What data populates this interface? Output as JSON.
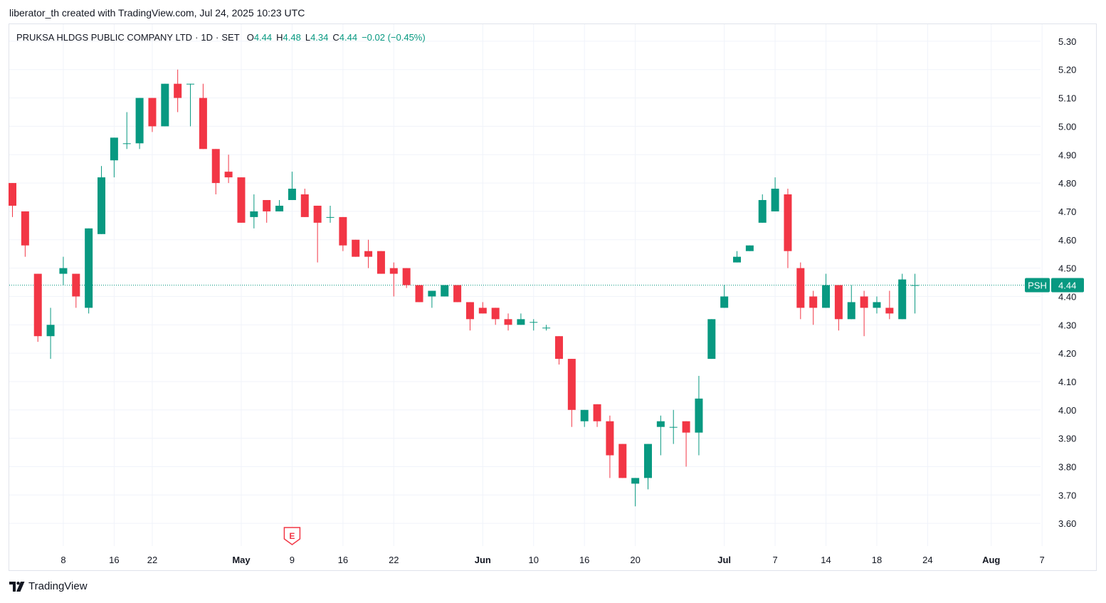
{
  "header": {
    "caption": "liberator_th created with TradingView.com, Jul 24, 2025 10:23 UTC"
  },
  "legend": {
    "symbol_name": "PRUKSA HLDGS PUBLIC COMPANY LTD",
    "interval": "1D",
    "exchange": "SET",
    "open_label": "O",
    "open": "4.44",
    "high_label": "H",
    "high": "4.48",
    "low_label": "L",
    "low": "4.34",
    "close_label": "C",
    "close": "4.44",
    "change": "−0.02 (−0.45%)"
  },
  "footer": {
    "brand": "TradingView"
  },
  "colors": {
    "up": "#089981",
    "down": "#f23645",
    "grid": "#f0f3fa",
    "text": "#131722"
  },
  "chart_data": {
    "type": "candlestick",
    "ylim": [
      3.52,
      5.36
    ],
    "y_ticks": [
      "5.30",
      "5.20",
      "5.10",
      "5.00",
      "4.90",
      "4.80",
      "4.70",
      "4.60",
      "4.50",
      "4.40",
      "4.30",
      "4.20",
      "4.10",
      "4.00",
      "3.90",
      "3.80",
      "3.70",
      "3.60"
    ],
    "x_ticks": [
      {
        "label": "8",
        "day": 8,
        "major": false
      },
      {
        "label": "16",
        "day": 16,
        "major": false
      },
      {
        "label": "22",
        "day": 22,
        "major": false
      },
      {
        "label": "May",
        "day": 36,
        "major": true
      },
      {
        "label": "9",
        "day": 44,
        "major": false
      },
      {
        "label": "16",
        "day": 52,
        "major": false
      },
      {
        "label": "22",
        "day": 60,
        "major": false
      },
      {
        "label": "Jun",
        "day": 74,
        "major": true
      },
      {
        "label": "10",
        "day": 82,
        "major": false
      },
      {
        "label": "16",
        "day": 90,
        "major": false
      },
      {
        "label": "20",
        "day": 98,
        "major": false
      },
      {
        "label": "Jul",
        "day": 112,
        "major": true
      },
      {
        "label": "7",
        "day": 120,
        "major": false
      },
      {
        "label": "14",
        "day": 128,
        "major": false
      },
      {
        "label": "18",
        "day": 136,
        "major": false
      },
      {
        "label": "24",
        "day": 144,
        "major": false
      },
      {
        "label": "Aug",
        "day": 154,
        "major": true
      },
      {
        "label": "7",
        "day": 162,
        "major": false
      }
    ],
    "last_price": {
      "symbol": "PSH",
      "value": "4.44",
      "price": 4.44
    },
    "earnings_marker": {
      "label": "E",
      "day": 44
    },
    "candles": [
      {
        "day": 0,
        "o": 4.8,
        "h": 4.8,
        "l": 4.68,
        "c": 4.72
      },
      {
        "day": 2,
        "o": 4.7,
        "h": 4.7,
        "l": 4.54,
        "c": 4.58
      },
      {
        "day": 4,
        "o": 4.48,
        "h": 4.48,
        "l": 4.24,
        "c": 4.26
      },
      {
        "day": 6,
        "o": 4.26,
        "h": 4.36,
        "l": 4.18,
        "c": 4.3
      },
      {
        "day": 8,
        "o": 4.48,
        "h": 4.54,
        "l": 4.44,
        "c": 4.5
      },
      {
        "day": 10,
        "o": 4.48,
        "h": 4.48,
        "l": 4.36,
        "c": 4.4
      },
      {
        "day": 12,
        "o": 4.36,
        "h": 4.64,
        "l": 4.34,
        "c": 4.64
      },
      {
        "day": 14,
        "o": 4.62,
        "h": 4.86,
        "l": 4.62,
        "c": 4.82
      },
      {
        "day": 16,
        "o": 4.88,
        "h": 4.96,
        "l": 4.82,
        "c": 4.96
      },
      {
        "day": 18,
        "o": 4.94,
        "h": 5.05,
        "l": 4.92,
        "c": 4.94
      },
      {
        "day": 20,
        "o": 4.94,
        "h": 5.1,
        "l": 4.92,
        "c": 5.1
      },
      {
        "day": 22,
        "o": 5.1,
        "h": 5.1,
        "l": 4.98,
        "c": 5.0
      },
      {
        "day": 24,
        "o": 5.0,
        "h": 5.15,
        "l": 5.0,
        "c": 5.15
      },
      {
        "day": 26,
        "o": 5.15,
        "h": 5.2,
        "l": 5.05,
        "c": 5.1
      },
      {
        "day": 28,
        "o": 5.15,
        "h": 5.15,
        "l": 5.0,
        "c": 5.15
      },
      {
        "day": 30,
        "o": 5.1,
        "h": 5.15,
        "l": 4.92,
        "c": 4.92
      },
      {
        "day": 32,
        "o": 4.92,
        "h": 4.92,
        "l": 4.76,
        "c": 4.8
      },
      {
        "day": 34,
        "o": 4.84,
        "h": 4.9,
        "l": 4.8,
        "c": 4.82
      },
      {
        "day": 36,
        "o": 4.82,
        "h": 4.82,
        "l": 4.66,
        "c": 4.66
      },
      {
        "day": 38,
        "o": 4.68,
        "h": 4.76,
        "l": 4.64,
        "c": 4.7
      },
      {
        "day": 40,
        "o": 4.74,
        "h": 4.74,
        "l": 4.66,
        "c": 4.7
      },
      {
        "day": 42,
        "o": 4.7,
        "h": 4.74,
        "l": 4.7,
        "c": 4.72
      },
      {
        "day": 44,
        "o": 4.74,
        "h": 4.84,
        "l": 4.74,
        "c": 4.78
      },
      {
        "day": 46,
        "o": 4.76,
        "h": 4.78,
        "l": 4.68,
        "c": 4.68
      },
      {
        "day": 48,
        "o": 4.72,
        "h": 4.72,
        "l": 4.52,
        "c": 4.66
      },
      {
        "day": 50,
        "o": 4.68,
        "h": 4.72,
        "l": 4.66,
        "c": 4.68
      },
      {
        "day": 52,
        "o": 4.68,
        "h": 4.68,
        "l": 4.56,
        "c": 4.58
      },
      {
        "day": 54,
        "o": 4.6,
        "h": 4.6,
        "l": 4.54,
        "c": 4.54
      },
      {
        "day": 56,
        "o": 4.56,
        "h": 4.6,
        "l": 4.5,
        "c": 4.54
      },
      {
        "day": 58,
        "o": 4.56,
        "h": 4.56,
        "l": 4.48,
        "c": 4.48
      },
      {
        "day": 60,
        "o": 4.5,
        "h": 4.52,
        "l": 4.4,
        "c": 4.48
      },
      {
        "day": 62,
        "o": 4.5,
        "h": 4.5,
        "l": 4.43,
        "c": 4.44
      },
      {
        "day": 64,
        "o": 4.44,
        "h": 4.44,
        "l": 4.38,
        "c": 4.38
      },
      {
        "day": 66,
        "o": 4.4,
        "h": 4.42,
        "l": 4.36,
        "c": 4.42
      },
      {
        "day": 68,
        "o": 4.4,
        "h": 4.44,
        "l": 4.4,
        "c": 4.44
      },
      {
        "day": 70,
        "o": 4.44,
        "h": 4.44,
        "l": 4.38,
        "c": 4.38
      },
      {
        "day": 72,
        "o": 4.38,
        "h": 4.38,
        "l": 4.28,
        "c": 4.32
      },
      {
        "day": 74,
        "o": 4.36,
        "h": 4.38,
        "l": 4.34,
        "c": 4.34
      },
      {
        "day": 76,
        "o": 4.36,
        "h": 4.36,
        "l": 4.3,
        "c": 4.32
      },
      {
        "day": 78,
        "o": 4.32,
        "h": 4.34,
        "l": 4.28,
        "c": 4.3
      },
      {
        "day": 80,
        "o": 4.3,
        "h": 4.34,
        "l": 4.3,
        "c": 4.32
      },
      {
        "day": 82,
        "o": 4.31,
        "h": 4.32,
        "l": 4.28,
        "c": 4.31
      },
      {
        "day": 84,
        "o": 4.29,
        "h": 4.3,
        "l": 4.28,
        "c": 4.29
      },
      {
        "day": 86,
        "o": 4.26,
        "h": 4.26,
        "l": 4.16,
        "c": 4.18
      },
      {
        "day": 88,
        "o": 4.18,
        "h": 4.18,
        "l": 3.94,
        "c": 4.0
      },
      {
        "day": 90,
        "o": 3.96,
        "h": 4.0,
        "l": 3.94,
        "c": 4.0
      },
      {
        "day": 92,
        "o": 4.02,
        "h": 4.02,
        "l": 3.94,
        "c": 3.96
      },
      {
        "day": 94,
        "o": 3.96,
        "h": 3.98,
        "l": 3.76,
        "c": 3.84
      },
      {
        "day": 96,
        "o": 3.88,
        "h": 3.88,
        "l": 3.76,
        "c": 3.76
      },
      {
        "day": 98,
        "o": 3.74,
        "h": 3.76,
        "l": 3.66,
        "c": 3.76
      },
      {
        "day": 100,
        "o": 3.76,
        "h": 3.88,
        "l": 3.72,
        "c": 3.88
      },
      {
        "day": 102,
        "o": 3.94,
        "h": 3.98,
        "l": 3.84,
        "c": 3.96
      },
      {
        "day": 104,
        "o": 3.94,
        "h": 4.0,
        "l": 3.88,
        "c": 3.94
      },
      {
        "day": 106,
        "o": 3.96,
        "h": 3.96,
        "l": 3.8,
        "c": 3.92
      },
      {
        "day": 108,
        "o": 3.92,
        "h": 4.12,
        "l": 3.84,
        "c": 4.04
      },
      {
        "day": 110,
        "o": 4.18,
        "h": 4.32,
        "l": 4.18,
        "c": 4.32
      },
      {
        "day": 112,
        "o": 4.36,
        "h": 4.44,
        "l": 4.36,
        "c": 4.4
      },
      {
        "day": 114,
        "o": 4.52,
        "h": 4.56,
        "l": 4.52,
        "c": 4.54
      },
      {
        "day": 116,
        "o": 4.56,
        "h": 4.58,
        "l": 4.56,
        "c": 4.58
      },
      {
        "day": 118,
        "o": 4.66,
        "h": 4.76,
        "l": 4.66,
        "c": 4.74
      },
      {
        "day": 120,
        "o": 4.7,
        "h": 4.82,
        "l": 4.7,
        "c": 4.78
      },
      {
        "day": 122,
        "o": 4.76,
        "h": 4.78,
        "l": 4.5,
        "c": 4.56
      },
      {
        "day": 124,
        "o": 4.5,
        "h": 4.52,
        "l": 4.32,
        "c": 4.36
      },
      {
        "day": 126,
        "o": 4.4,
        "h": 4.42,
        "l": 4.3,
        "c": 4.36
      },
      {
        "day": 128,
        "o": 4.36,
        "h": 4.48,
        "l": 4.36,
        "c": 4.44
      },
      {
        "day": 130,
        "o": 4.44,
        "h": 4.44,
        "l": 4.28,
        "c": 4.32
      },
      {
        "day": 132,
        "o": 4.32,
        "h": 4.44,
        "l": 4.32,
        "c": 4.38
      },
      {
        "day": 134,
        "o": 4.4,
        "h": 4.42,
        "l": 4.26,
        "c": 4.36
      },
      {
        "day": 136,
        "o": 4.36,
        "h": 4.4,
        "l": 4.34,
        "c": 4.38
      },
      {
        "day": 138,
        "o": 4.36,
        "h": 4.42,
        "l": 4.32,
        "c": 4.34
      },
      {
        "day": 140,
        "o": 4.32,
        "h": 4.48,
        "l": 4.32,
        "c": 4.46
      },
      {
        "day": 142,
        "o": 4.44,
        "h": 4.48,
        "l": 4.34,
        "c": 4.44
      }
    ]
  }
}
